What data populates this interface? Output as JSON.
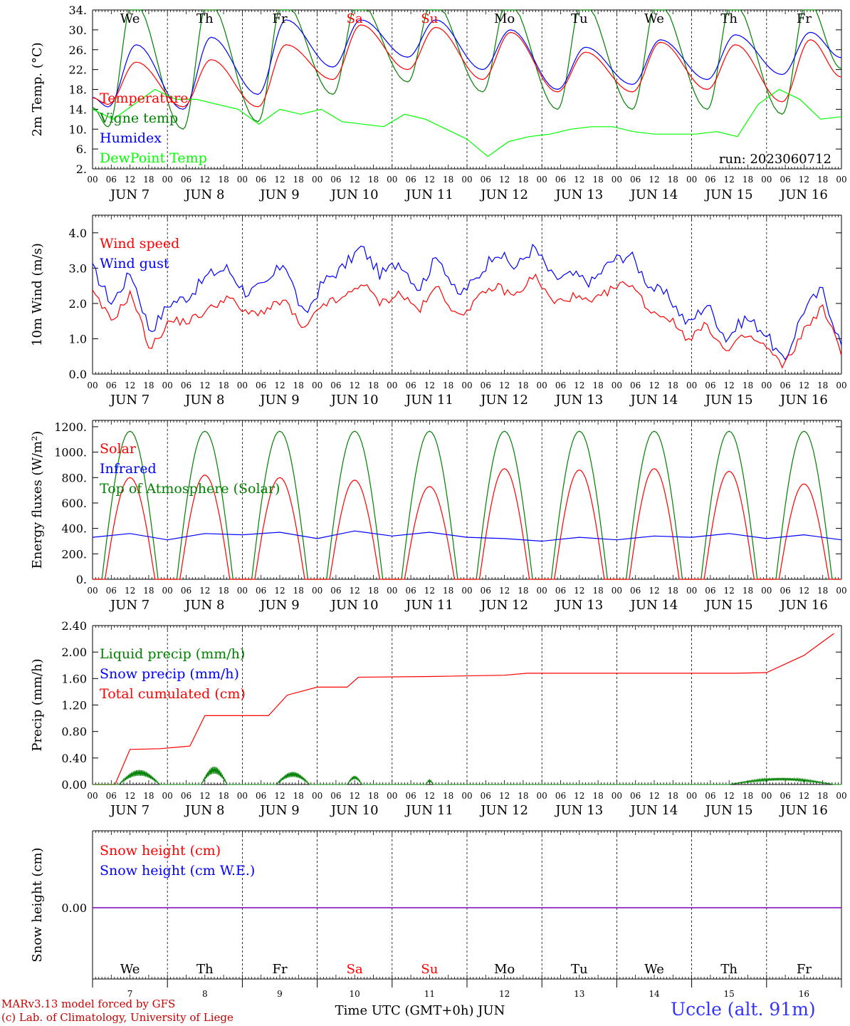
{
  "chart_data": [
    {
      "type": "line",
      "ylabel": "2m Temp. (°C)",
      "ylim": [
        2,
        34
      ],
      "yticks": [
        "34.",
        "30.",
        "26.",
        "22.",
        "18.",
        "14.",
        "10.",
        "6.",
        "2."
      ],
      "legend": [
        "Temperature",
        "Vigne temp",
        "Humidex",
        "DewPoint Temp"
      ],
      "run_label": "run: 2023060712",
      "day_names": [
        "We",
        "Th",
        "Fr",
        "Sa",
        "Su",
        "Mo",
        "Tu",
        "We",
        "Th",
        "Fr"
      ],
      "series": [
        {
          "name": "Temperature",
          "color": "#ff0000",
          "min": [
            15,
            14.5,
            14.5,
            20,
            22,
            20,
            17.5,
            17.5,
            18,
            15.5
          ],
          "max": [
            23.5,
            24,
            27,
            31,
            30.5,
            29.5,
            25.5,
            27.5,
            27,
            28
          ]
        },
        {
          "name": "Vigne temp",
          "color": "#008000",
          "min": [
            10.5,
            10,
            11.5,
            17,
            19.5,
            17.5,
            14,
            14,
            14,
            13
          ],
          "max": [
            36,
            36,
            36,
            36,
            36,
            36,
            36,
            36,
            36,
            36
          ]
        },
        {
          "name": "Humidex",
          "color": "#0000ff",
          "min": [
            14.5,
            14,
            17,
            22.5,
            24.5,
            22,
            18,
            19,
            20,
            21
          ],
          "max": [
            27,
            28.5,
            32,
            32,
            32,
            30,
            26.5,
            28,
            29,
            29.5
          ]
        },
        {
          "name": "DewPoint Temp",
          "color": "#00ff00",
          "values": [
            14,
            12,
            15,
            18,
            16,
            16,
            15,
            14,
            11,
            14,
            13,
            14,
            11.5,
            11,
            10.5,
            13,
            12,
            10,
            8,
            4.5,
            7.5,
            8.5,
            9,
            10,
            10.5,
            10.5,
            9.5,
            9,
            9,
            9,
            9.5,
            8.5,
            15,
            18,
            16,
            12,
            12.5
          ]
        }
      ]
    },
    {
      "type": "line",
      "ylabel": "10m Wind (m/s)",
      "ylim": [
        0,
        4.5
      ],
      "yticks": [
        "4.0",
        "3.0",
        "2.0",
        "1.0",
        "0.0"
      ],
      "legend": [
        "Wind speed",
        "Wind gust"
      ],
      "series": [
        {
          "name": "Wind speed",
          "color": "#ff0000",
          "values": [
            2.3,
            1.5,
            2.3,
            0.7,
            1.5,
            1.5,
            1.8,
            2.2,
            1.7,
            1.8,
            2.1,
            1.2,
            2.0,
            2.1,
            2.6,
            2.0,
            2.3,
            1.8,
            2.5,
            1.6,
            2.1,
            2.5,
            2.2,
            2.8,
            2.0,
            2.2,
            2.0,
            2.4,
            2.6,
            1.8,
            1.6,
            1.0,
            1.4,
            0.6,
            1.1,
            0.8,
            0.2,
            1.2,
            1.9,
            0.6
          ]
        },
        {
          "name": "Wind gust",
          "color": "#0000ff",
          "values": [
            3.0,
            2.0,
            2.9,
            1.2,
            2.0,
            2.2,
            2.8,
            3.0,
            2.3,
            2.5,
            3.2,
            1.6,
            2.6,
            3.0,
            3.6,
            2.8,
            3.2,
            2.4,
            3.4,
            2.2,
            2.7,
            3.5,
            3.0,
            3.6,
            2.7,
            2.8,
            2.6,
            3.2,
            3.4,
            2.5,
            2.2,
            1.4,
            2.0,
            1.0,
            1.6,
            1.2,
            0.3,
            1.8,
            2.4,
            0.8
          ]
        }
      ]
    },
    {
      "type": "line",
      "ylabel": "Energy fluxes (W/m²)",
      "ylim": [
        0,
        1250
      ],
      "yticks": [
        "1200.",
        "1000.",
        "800.",
        "600.",
        "400.",
        "200.",
        "0."
      ],
      "legend": [
        "Solar",
        "Infrared",
        "Top of Atmosphere (Solar)"
      ],
      "series": [
        {
          "name": "Solar",
          "color": "#ff0000",
          "daily_peak": [
            800,
            820,
            800,
            780,
            730,
            870,
            860,
            870,
            850,
            750
          ]
        },
        {
          "name": "Infrared",
          "color": "#0000ff",
          "values": [
            330,
            360,
            310,
            360,
            350,
            370,
            320,
            380,
            340,
            370,
            330,
            320,
            300,
            330,
            310,
            340,
            330,
            360,
            320,
            350,
            310
          ]
        },
        {
          "name": "Top of Atmosphere (Solar)",
          "color": "#008000",
          "daily_peak": [
            1165,
            1165,
            1165,
            1165,
            1165,
            1165,
            1165,
            1165,
            1165,
            1165
          ]
        }
      ]
    },
    {
      "type": "line",
      "ylabel": "Precip (mm/h)",
      "ylim": [
        0,
        2.4
      ],
      "yticks": [
        "2.40",
        "2.00",
        "1.60",
        "1.20",
        "0.80",
        "0.40",
        "0.00"
      ],
      "legend": [
        "Liquid precip (mm/h)",
        "Snow precip (mm/h)",
        "Total cumulated (cm)"
      ],
      "series": [
        {
          "name": "Total cumulated (cm)",
          "color": "#ff0000",
          "x": [
            0,
            0.3,
            0.5,
            0.9,
            1.3,
            1.5,
            1.95,
            2.35,
            2.6,
            3.0,
            3.4,
            3.55,
            4.5,
            5.5,
            5.8,
            8.6,
            9.0,
            9.5,
            9.9
          ],
          "values": [
            0,
            0,
            0.53,
            0.54,
            0.58,
            1.04,
            1.04,
            1.04,
            1.35,
            1.47,
            1.47,
            1.62,
            1.63,
            1.65,
            1.68,
            1.68,
            1.69,
            1.95,
            2.28
          ]
        },
        {
          "name": "Liquid precip (mm/h)",
          "color": "#008000",
          "bursts": [
            [
              0.35,
              0.9,
              0.22
            ],
            [
              1.45,
              1.8,
              0.27
            ],
            [
              2.45,
              2.9,
              0.19
            ],
            [
              3.4,
              3.6,
              0.13
            ],
            [
              4.45,
              4.55,
              0.07
            ],
            [
              8.5,
              9.9,
              0.1
            ]
          ]
        },
        {
          "name": "Snow precip (mm/h)",
          "color": "#0000ff",
          "values": [
            0
          ]
        }
      ]
    },
    {
      "type": "line",
      "ylabel": "Snow height (cm)",
      "yticks": [
        "0.00"
      ],
      "legend": [
        "Snow height (cm)",
        "Snow height (cm W.E.)"
      ],
      "series": [
        {
          "name": "Snow height (cm)",
          "color": "#ff0000",
          "values": [
            0
          ]
        },
        {
          "name": "Snow height (cm W.E.)",
          "color": "#0000ff",
          "values": [
            0
          ]
        }
      ]
    }
  ],
  "x_axis": {
    "hour_ticks": [
      "00",
      "06",
      "12",
      "18"
    ],
    "end_tick": "00",
    "date_labels": [
      "JUN  7",
      "JUN  8",
      "JUN  9",
      "JUN 10",
      "JUN 11",
      "JUN 12",
      "JUN 13",
      "JUN 14",
      "JUN 15",
      "JUN 16"
    ],
    "day_names": [
      "We",
      "Th",
      "Fr",
      "Sa",
      "Su",
      "Mo",
      "Tu",
      "We",
      "Th",
      "Fr"
    ],
    "weekend_indices": [
      3,
      4
    ],
    "day_numbers": [
      "7",
      "8",
      "9",
      "10",
      "11",
      "12",
      "13",
      "14",
      "15",
      "16"
    ],
    "bottom_label": "Time UTC (GMT+0h) JUN"
  },
  "footer": {
    "model_line": "MARv3.13 model forced by GFS",
    "copyright_line": "(c) Lab. of Climatology, University of Liege",
    "station": "Uccle (alt. 91m)"
  },
  "colors": {
    "red": "#ff0000",
    "green": "#008000",
    "blue": "#0000ff",
    "lightgreen": "#00ff00",
    "purple": "#8000c0",
    "footer_red": "#cc0000",
    "station_blue": "#3333ff"
  }
}
